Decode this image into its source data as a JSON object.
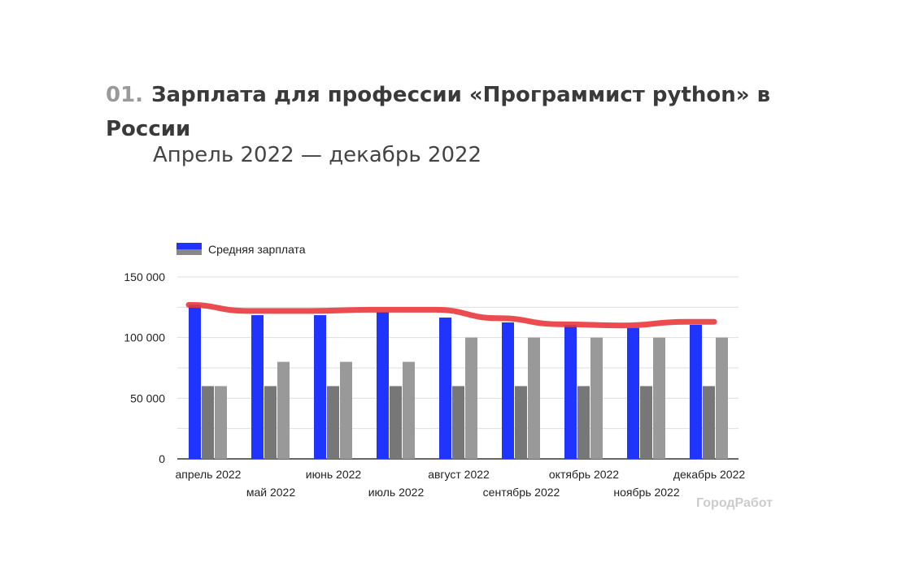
{
  "header": {
    "number": "01.",
    "title": "Зарплата для профессии «Программист python» в России",
    "subtitle": "Апрель 2022 — декабрь 2022"
  },
  "chart_data": {
    "type": "bar",
    "categories": [
      "апрель 2022",
      "май 2022",
      "июнь 2022",
      "июль 2022",
      "август 2022",
      "сентябрь 2022",
      "октябрь 2022",
      "ноябрь 2022",
      "декабрь 2022"
    ],
    "series": [
      {
        "name": "Средняя зарплата",
        "color": "#1f35ff",
        "values": [
          127000,
          118500,
          118500,
          121000,
          116500,
          112500,
          110500,
          108000,
          110500
        ]
      },
      {
        "color": "#777777",
        "values": [
          60000,
          60000,
          60000,
          60000,
          60000,
          60000,
          60000,
          60000,
          60000
        ]
      },
      {
        "color": "#999999",
        "values": [
          60000,
          80000,
          80000,
          80000,
          100000,
          100000,
          100000,
          100000,
          100000
        ]
      }
    ],
    "annotation_line": {
      "color": "#e8383c",
      "values": [
        127000,
        122000,
        122000,
        123000,
        123000,
        116000,
        111000,
        110000,
        113000
      ]
    },
    "yticks": [
      "0",
      "50 000",
      "100 000",
      "150 000"
    ],
    "ylim": [
      0,
      150000
    ],
    "grid": true,
    "legend": "top-left",
    "watermark": "ГородРабот"
  }
}
